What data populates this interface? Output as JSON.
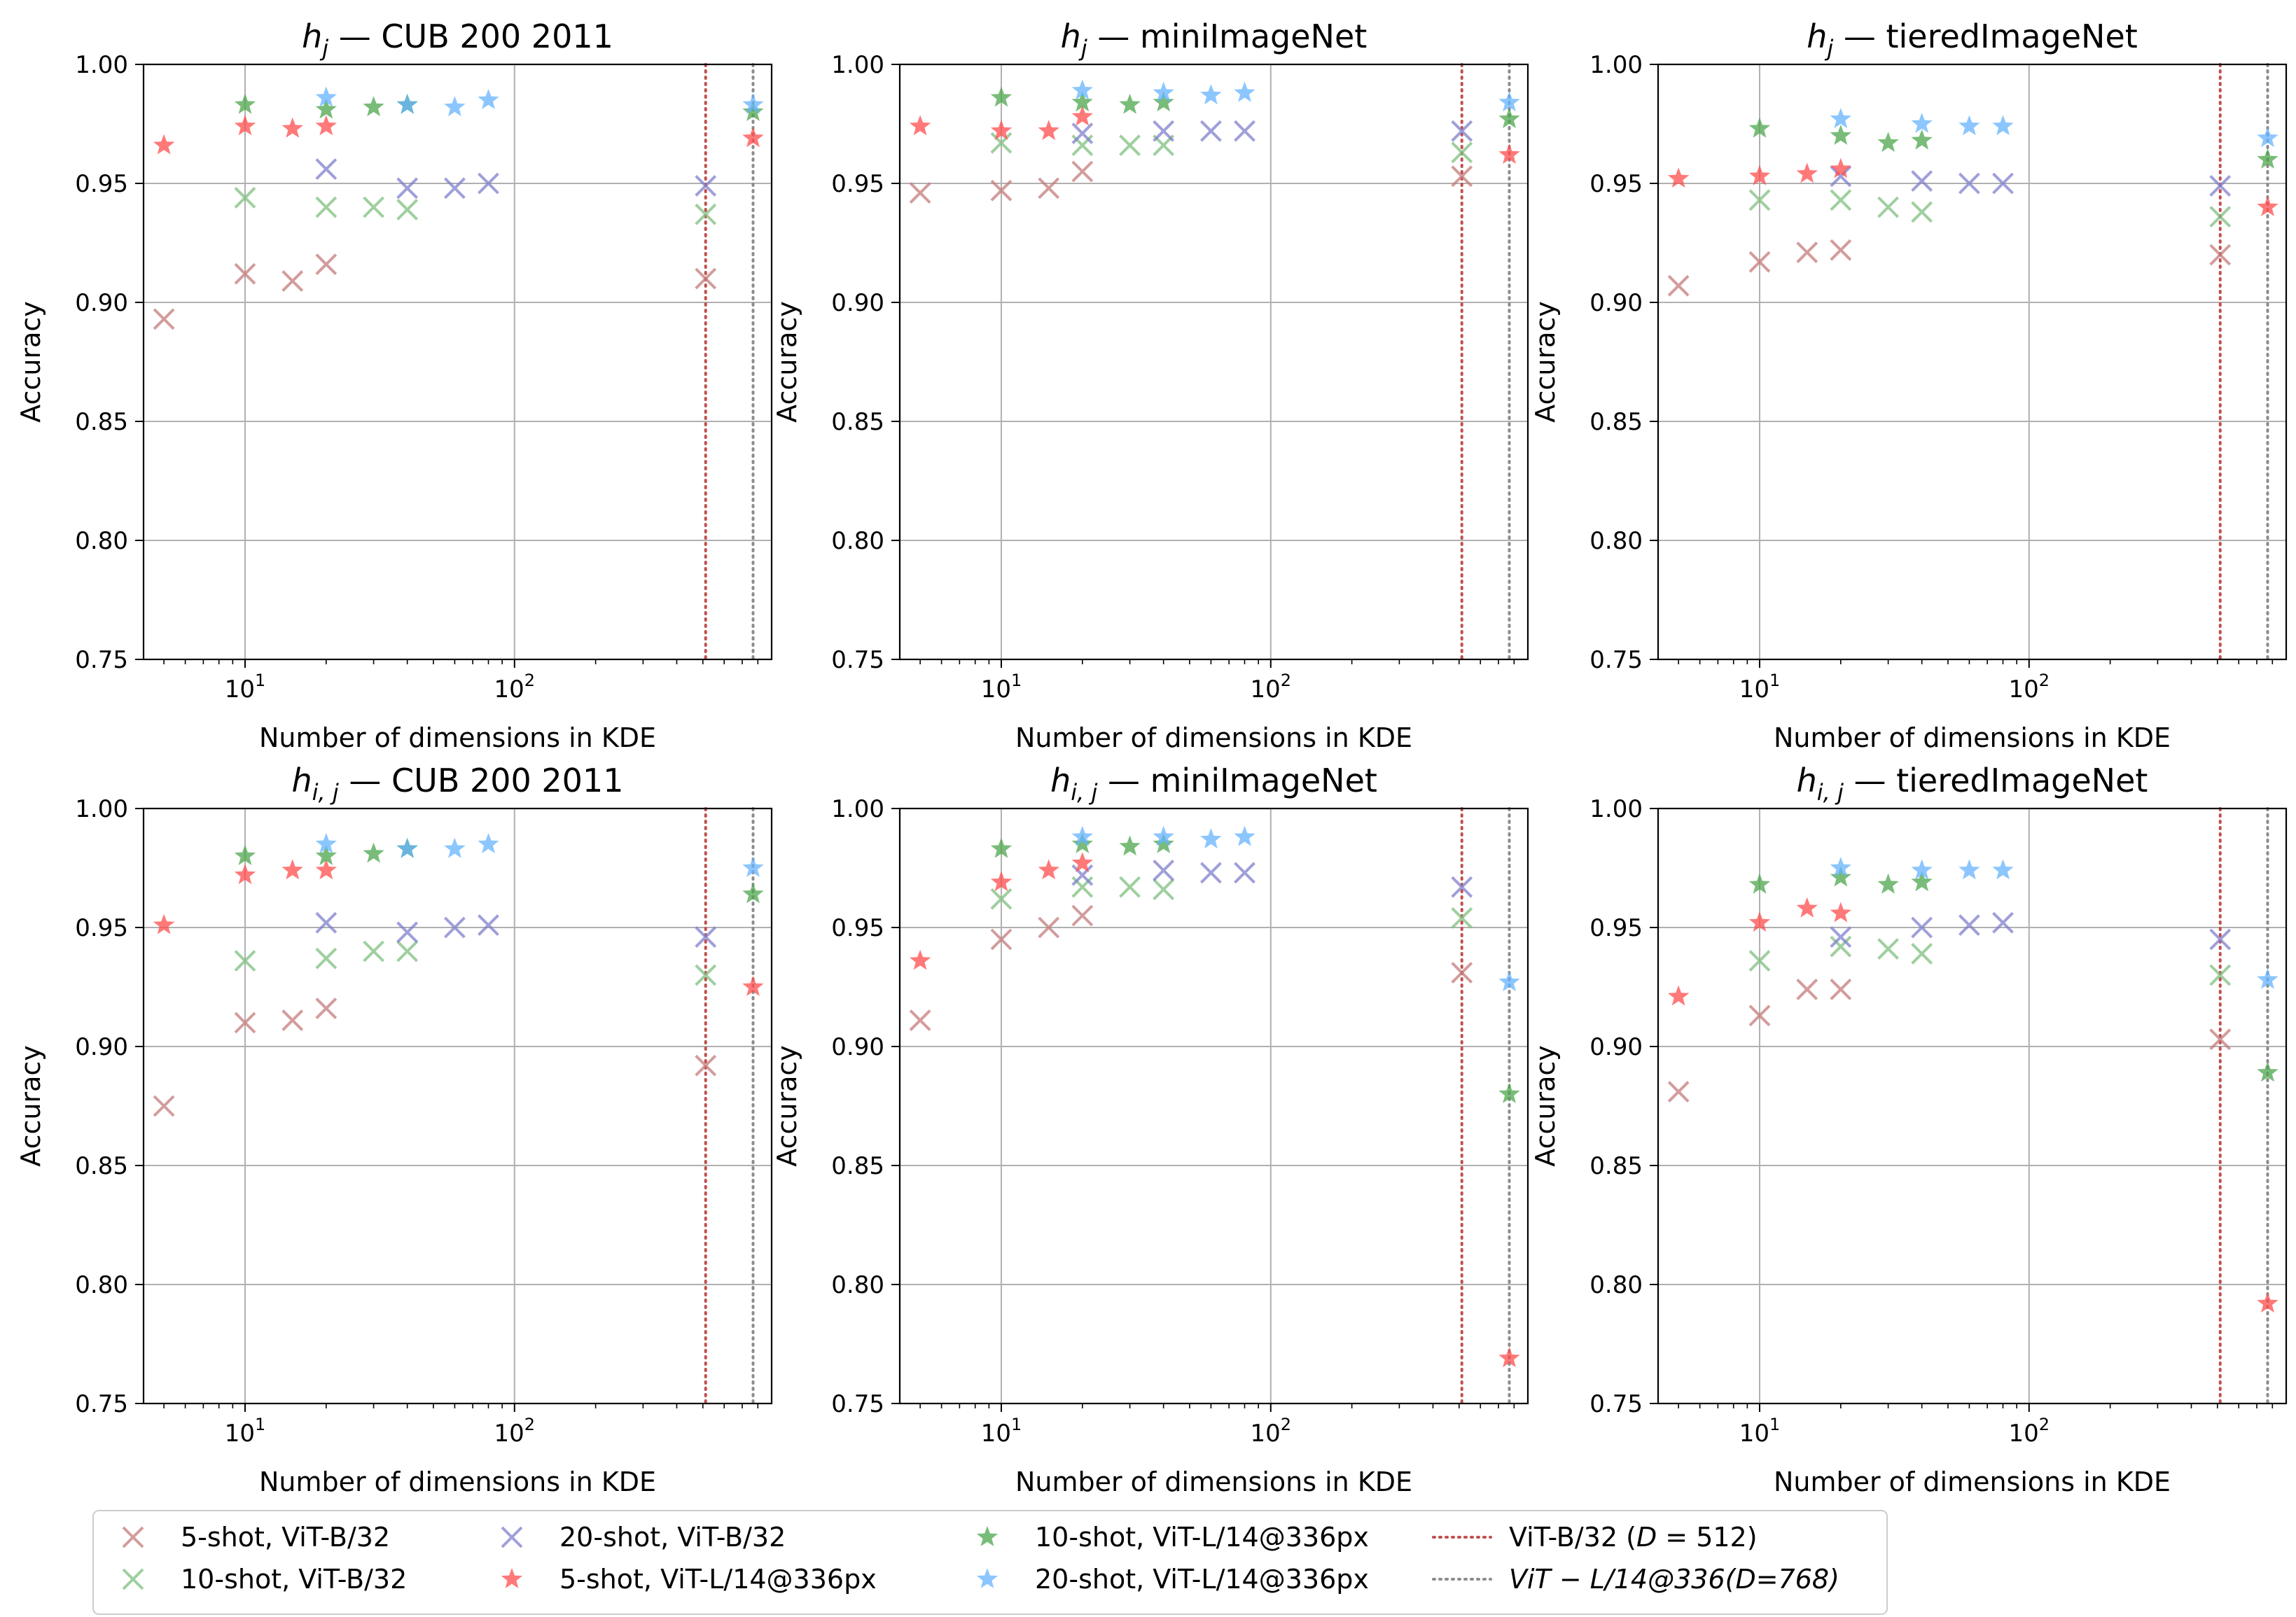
{
  "chart_data": {
    "type": "scatter",
    "layout": "2x3 grid of subplots",
    "xscale": "log",
    "xlim": [
      4.2,
      900
    ],
    "ylim": [
      0.75,
      1.0
    ],
    "grid": true,
    "xlabel": "Number of dimensions in KDE",
    "ylabel": "Accuracy",
    "xticks": [
      10,
      100
    ],
    "xtick_labels": [
      {
        "base": "10",
        "exp": "1"
      },
      {
        "base": "10",
        "exp": "2"
      }
    ],
    "yticks": [
      0.75,
      0.8,
      0.85,
      0.9,
      0.95,
      1.0
    ],
    "ytick_labels": [
      "0.75",
      "0.80",
      "0.85",
      "0.90",
      "0.95",
      "1.00"
    ],
    "legend_position": "bottom, below subplots, 4 columns",
    "series_styles": [
      {
        "key": "s5b",
        "label": "5-shot, ViT-B/32",
        "marker": "x",
        "color": "#c47b7b"
      },
      {
        "key": "s10b",
        "label": "10-shot, ViT-B/32",
        "marker": "x",
        "color": "#7fbf7f"
      },
      {
        "key": "s20b",
        "label": "20-shot, ViT-B/32",
        "marker": "x",
        "color": "#7f7fcc"
      },
      {
        "key": "s5l",
        "label": "5-shot, ViT-L/14@336px",
        "marker": "star",
        "color": "#ff4c4c"
      },
      {
        "key": "s10l",
        "label": "10-shot, ViT-L/14@336px",
        "marker": "star",
        "color": "#4ca64c"
      },
      {
        "key": "s20l",
        "label": "20-shot, ViT-L/14@336px",
        "marker": "star",
        "color": "#66b3ff"
      }
    ],
    "reference_lines": [
      {
        "label_plain": "ViT-B/32 (",
        "label_math": "D",
        "label_rest": " = 512)",
        "x": 512,
        "color": "#c0504d",
        "style": "dotted"
      },
      {
        "label_plain": "",
        "label_math": "ViT − L/14@336(D=768)",
        "label_rest": "",
        "x": 768,
        "color": "#8c8c8c",
        "style": "dotted"
      }
    ],
    "panels": [
      {
        "title_math": "h",
        "title_sub": "j",
        "title_rest": " — CUB 200 2011",
        "series": {
          "s5b": [
            [
              5,
              0.893
            ],
            [
              10,
              0.912
            ],
            [
              15,
              0.909
            ],
            [
              20,
              0.916
            ],
            [
              512,
              0.91
            ]
          ],
          "s10b": [
            [
              10,
              0.944
            ],
            [
              20,
              0.94
            ],
            [
              30,
              0.94
            ],
            [
              40,
              0.939
            ],
            [
              512,
              0.937
            ]
          ],
          "s20b": [
            [
              20,
              0.956
            ],
            [
              40,
              0.948
            ],
            [
              60,
              0.948
            ],
            [
              80,
              0.95
            ],
            [
              512,
              0.949
            ]
          ],
          "s5l": [
            [
              5,
              0.966
            ],
            [
              10,
              0.974
            ],
            [
              15,
              0.973
            ],
            [
              20,
              0.974
            ],
            [
              768,
              0.969
            ]
          ],
          "s10l": [
            [
              10,
              0.983
            ],
            [
              20,
              0.981
            ],
            [
              30,
              0.982
            ],
            [
              40,
              0.983
            ],
            [
              768,
              0.98
            ]
          ],
          "s20l": [
            [
              20,
              0.986
            ],
            [
              40,
              0.983
            ],
            [
              60,
              0.982
            ],
            [
              80,
              0.985
            ],
            [
              768,
              0.983
            ]
          ]
        }
      },
      {
        "title_math": "h",
        "title_sub": "j",
        "title_rest": " — miniImageNet",
        "series": {
          "s5b": [
            [
              5,
              0.946
            ],
            [
              10,
              0.947
            ],
            [
              15,
              0.948
            ],
            [
              20,
              0.955
            ],
            [
              512,
              0.953
            ]
          ],
          "s10b": [
            [
              10,
              0.967
            ],
            [
              20,
              0.966
            ],
            [
              30,
              0.966
            ],
            [
              40,
              0.966
            ],
            [
              512,
              0.963
            ]
          ],
          "s20b": [
            [
              20,
              0.971
            ],
            [
              40,
              0.972
            ],
            [
              60,
              0.972
            ],
            [
              80,
              0.972
            ],
            [
              512,
              0.972
            ]
          ],
          "s5l": [
            [
              5,
              0.974
            ],
            [
              10,
              0.972
            ],
            [
              15,
              0.972
            ],
            [
              20,
              0.978
            ],
            [
              768,
              0.962
            ]
          ],
          "s10l": [
            [
              10,
              0.986
            ],
            [
              20,
              0.984
            ],
            [
              30,
              0.983
            ],
            [
              40,
              0.984
            ],
            [
              768,
              0.977
            ]
          ],
          "s20l": [
            [
              20,
              0.989
            ],
            [
              40,
              0.988
            ],
            [
              60,
              0.987
            ],
            [
              80,
              0.988
            ],
            [
              768,
              0.984
            ]
          ]
        }
      },
      {
        "title_math": "h",
        "title_sub": "j",
        "title_rest": " — tieredImageNet",
        "series": {
          "s5b": [
            [
              5,
              0.907
            ],
            [
              10,
              0.917
            ],
            [
              15,
              0.921
            ],
            [
              20,
              0.922
            ],
            [
              512,
              0.92
            ]
          ],
          "s10b": [
            [
              10,
              0.943
            ],
            [
              20,
              0.943
            ],
            [
              30,
              0.94
            ],
            [
              40,
              0.938
            ],
            [
              512,
              0.936
            ]
          ],
          "s20b": [
            [
              20,
              0.953
            ],
            [
              40,
              0.951
            ],
            [
              60,
              0.95
            ],
            [
              80,
              0.95
            ],
            [
              512,
              0.949
            ]
          ],
          "s5l": [
            [
              5,
              0.952
            ],
            [
              10,
              0.953
            ],
            [
              15,
              0.954
            ],
            [
              20,
              0.956
            ],
            [
              768,
              0.94
            ]
          ],
          "s10l": [
            [
              10,
              0.973
            ],
            [
              20,
              0.97
            ],
            [
              30,
              0.967
            ],
            [
              40,
              0.968
            ],
            [
              768,
              0.96
            ]
          ],
          "s20l": [
            [
              20,
              0.977
            ],
            [
              40,
              0.975
            ],
            [
              60,
              0.974
            ],
            [
              80,
              0.974
            ],
            [
              768,
              0.969
            ]
          ]
        }
      },
      {
        "title_math": "h",
        "title_sub": "i, j",
        "title_rest": " — CUB 200 2011",
        "series": {
          "s5b": [
            [
              5,
              0.875
            ],
            [
              10,
              0.91
            ],
            [
              15,
              0.911
            ],
            [
              20,
              0.916
            ],
            [
              512,
              0.892
            ]
          ],
          "s10b": [
            [
              10,
              0.936
            ],
            [
              20,
              0.937
            ],
            [
              30,
              0.94
            ],
            [
              40,
              0.94
            ],
            [
              512,
              0.93
            ]
          ],
          "s20b": [
            [
              20,
              0.952
            ],
            [
              40,
              0.948
            ],
            [
              60,
              0.95
            ],
            [
              80,
              0.951
            ],
            [
              512,
              0.946
            ]
          ],
          "s5l": [
            [
              5,
              0.951
            ],
            [
              10,
              0.972
            ],
            [
              15,
              0.974
            ],
            [
              20,
              0.974
            ],
            [
              768,
              0.925
            ]
          ],
          "s10l": [
            [
              10,
              0.98
            ],
            [
              20,
              0.98
            ],
            [
              30,
              0.981
            ],
            [
              40,
              0.983
            ],
            [
              768,
              0.964
            ]
          ],
          "s20l": [
            [
              20,
              0.985
            ],
            [
              40,
              0.983
            ],
            [
              60,
              0.983
            ],
            [
              80,
              0.985
            ],
            [
              768,
              0.975
            ]
          ]
        }
      },
      {
        "title_math": "h",
        "title_sub": "i, j",
        "title_rest": " — miniImageNet",
        "series": {
          "s5b": [
            [
              5,
              0.911
            ],
            [
              10,
              0.945
            ],
            [
              15,
              0.95
            ],
            [
              20,
              0.955
            ],
            [
              512,
              0.931
            ]
          ],
          "s10b": [
            [
              10,
              0.962
            ],
            [
              20,
              0.967
            ],
            [
              30,
              0.967
            ],
            [
              40,
              0.966
            ],
            [
              512,
              0.954
            ]
          ],
          "s20b": [
            [
              20,
              0.972
            ],
            [
              40,
              0.974
            ],
            [
              60,
              0.973
            ],
            [
              80,
              0.973
            ],
            [
              512,
              0.967
            ]
          ],
          "s5l": [
            [
              5,
              0.936
            ],
            [
              10,
              0.969
            ],
            [
              15,
              0.974
            ],
            [
              20,
              0.977
            ],
            [
              768,
              0.769
            ]
          ],
          "s10l": [
            [
              10,
              0.983
            ],
            [
              20,
              0.985
            ],
            [
              30,
              0.984
            ],
            [
              40,
              0.985
            ],
            [
              768,
              0.88
            ]
          ],
          "s20l": [
            [
              20,
              0.988
            ],
            [
              40,
              0.988
            ],
            [
              60,
              0.987
            ],
            [
              80,
              0.988
            ],
            [
              768,
              0.927
            ]
          ]
        }
      },
      {
        "title_math": "h",
        "title_sub": "i, j",
        "title_rest": " — tieredImageNet",
        "series": {
          "s5b": [
            [
              5,
              0.881
            ],
            [
              10,
              0.913
            ],
            [
              15,
              0.924
            ],
            [
              20,
              0.924
            ],
            [
              512,
              0.903
            ]
          ],
          "s10b": [
            [
              10,
              0.936
            ],
            [
              20,
              0.942
            ],
            [
              30,
              0.941
            ],
            [
              40,
              0.939
            ],
            [
              512,
              0.93
            ]
          ],
          "s20b": [
            [
              20,
              0.946
            ],
            [
              40,
              0.95
            ],
            [
              60,
              0.951
            ],
            [
              80,
              0.952
            ],
            [
              512,
              0.945
            ]
          ],
          "s5l": [
            [
              5,
              0.921
            ],
            [
              10,
              0.952
            ],
            [
              15,
              0.958
            ],
            [
              20,
              0.956
            ],
            [
              768,
              0.792
            ]
          ],
          "s10l": [
            [
              10,
              0.968
            ],
            [
              20,
              0.971
            ],
            [
              30,
              0.968
            ],
            [
              40,
              0.969
            ],
            [
              768,
              0.889
            ]
          ],
          "s20l": [
            [
              20,
              0.975
            ],
            [
              40,
              0.974
            ],
            [
              60,
              0.974
            ],
            [
              80,
              0.974
            ],
            [
              768,
              0.928
            ]
          ]
        }
      }
    ]
  }
}
